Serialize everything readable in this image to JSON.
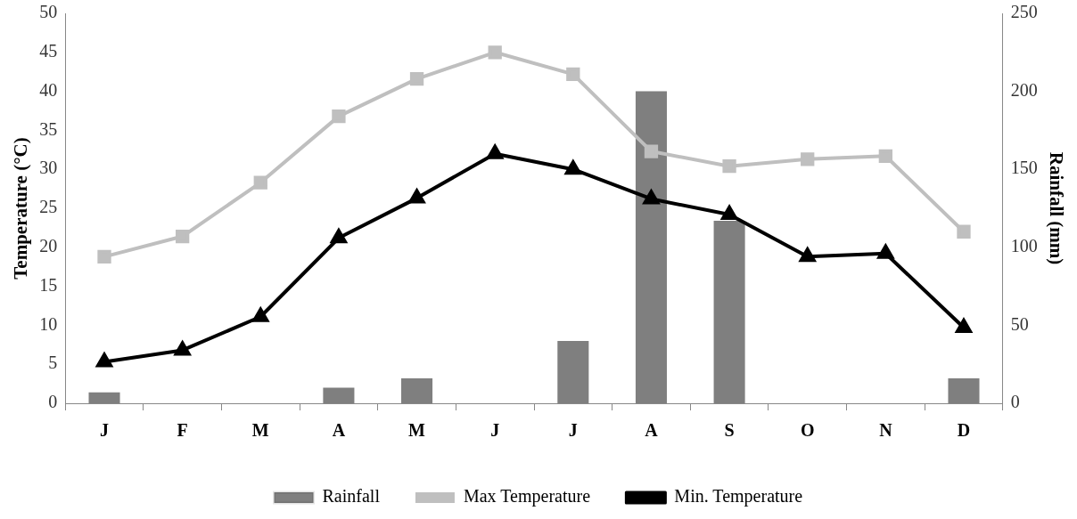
{
  "chart_data": {
    "type": "bar",
    "categories": [
      "J",
      "F",
      "M",
      "A",
      "M",
      "J",
      "J",
      "A",
      "S",
      "O",
      "N",
      "D"
    ],
    "series": [
      {
        "name": "Rainfall",
        "axis": "y2",
        "color": "#7f7f7f",
        "values": [
          7,
          0,
          0,
          10,
          16,
          0,
          40,
          200,
          117,
          0,
          0,
          16
        ]
      },
      {
        "name": "Max Temperature",
        "type": "line",
        "color": "#bfbfbf",
        "marker": "square",
        "values": [
          18.8,
          21.4,
          28.3,
          36.8,
          41.6,
          45,
          42.2,
          32.3,
          30.4,
          31.3,
          31.7,
          22
        ]
      },
      {
        "name": "Min. Temperature",
        "type": "line",
        "color": "#000000",
        "marker": "triangle",
        "values": [
          5.3,
          6.8,
          11.1,
          21.2,
          26.3,
          32,
          30,
          26.2,
          24.2,
          18.8,
          19.2,
          9.7
        ]
      }
    ],
    "ylabel": "Temperature (°C)",
    "y2label": "Rainfall (mm)",
    "ylim": [
      0,
      50
    ],
    "yticks": [
      0,
      5,
      10,
      15,
      20,
      25,
      30,
      35,
      40,
      45,
      50
    ],
    "y2lim": [
      0,
      250
    ],
    "y2ticks": [
      0,
      50,
      100,
      150,
      200,
      250
    ],
    "grid": false,
    "legend": "bottom"
  }
}
